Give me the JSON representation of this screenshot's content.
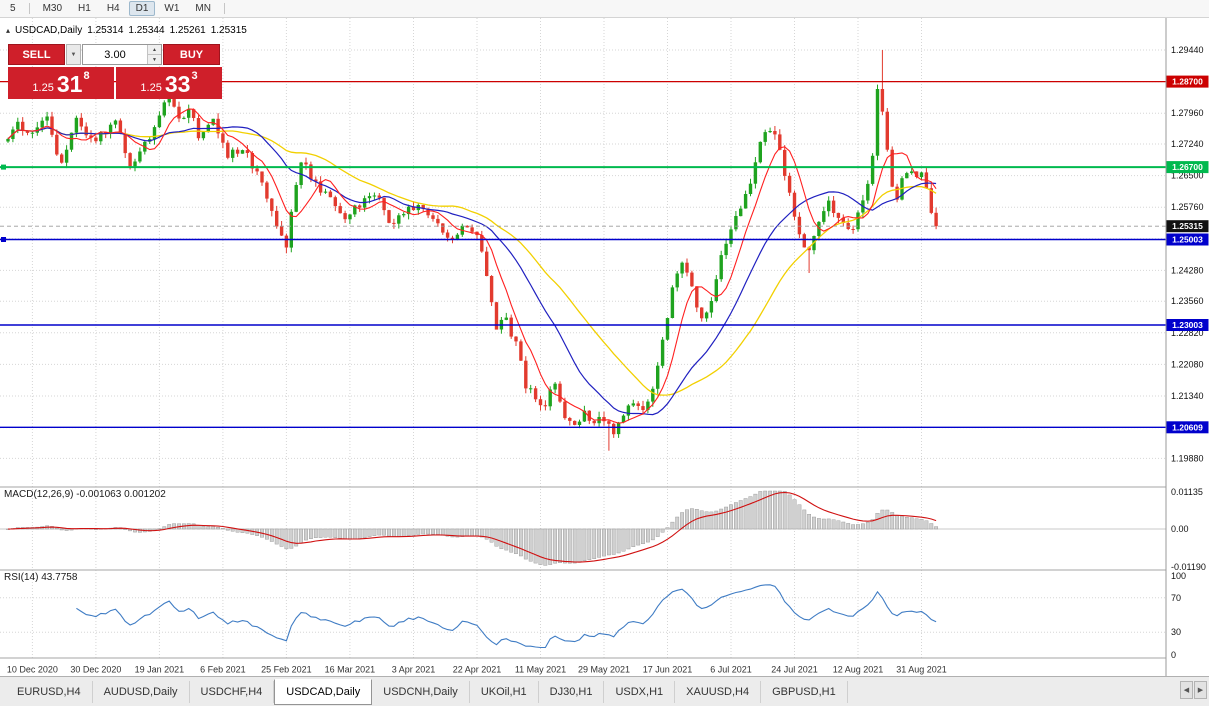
{
  "toolbar": {
    "timeframes": [
      {
        "label": "5",
        "active": false
      },
      {
        "label": "M30",
        "active": false
      },
      {
        "label": "H1",
        "active": false
      },
      {
        "label": "H4",
        "active": false
      },
      {
        "label": "D1",
        "active": true
      },
      {
        "label": "W1",
        "active": false
      },
      {
        "label": "MN",
        "active": false
      }
    ]
  },
  "chart": {
    "title": {
      "collapse_glyph": "▴",
      "symbol": "USDCAD,Daily",
      "open": "1.25314",
      "high": "1.25344",
      "low": "1.25261",
      "close": "1.25315"
    },
    "current_price": {
      "value": 1.25315,
      "label": "1.25315"
    },
    "y_ticks": [
      "1.29440",
      "1.28700",
      "1.27960",
      "1.27240",
      "1.26500",
      "1.25760",
      "1.25020",
      "1.24280",
      "1.23560",
      "1.22820",
      "1.22080",
      "1.21340",
      "1.20600",
      "1.19880"
    ],
    "levels": [
      {
        "price": 1.287,
        "label": "1.28700",
        "color": "#cc0000",
        "width": 1.2,
        "handle": false
      },
      {
        "price": 1.267,
        "label": "1.26700",
        "color": "#00b94e",
        "width": 2,
        "handle": true
      },
      {
        "price": 1.25003,
        "label": "1.25003",
        "color": "#0000cc",
        "width": 1.4,
        "handle": true
      },
      {
        "price": 1.23003,
        "label": "1.23003",
        "color": "#0000cc",
        "width": 1.4,
        "handle": false
      },
      {
        "price": 1.20609,
        "label": "1.20609",
        "color": "#0000cc",
        "width": 1.4,
        "handle": false
      }
    ],
    "x_labels": [
      "10 Dec 2020",
      "30 Dec 2020",
      "19 Jan 2021",
      "6 Feb 2021",
      "25 Feb 2021",
      "16 Mar 2021",
      "3 Apr 2021",
      "22 Apr 2021",
      "11 May 2021",
      "29 May 2021",
      "17 Jun 2021",
      "6 Jul 2021",
      "24 Jul 2021",
      "12 Aug 2021",
      "31 Aug 2021"
    ]
  },
  "trade": {
    "sell_label": "SELL",
    "buy_label": "BUY",
    "volume": "3.00",
    "dropdown_glyph": "▼",
    "spin_up_glyph": "▲",
    "spin_down_glyph": "▼",
    "sell_price": {
      "big": "1.25",
      "pips": "31",
      "frac": "8"
    },
    "buy_price": {
      "big": "1.25",
      "pips": "33",
      "frac": "3"
    }
  },
  "macd": {
    "label": "MACD(12,26,9) -0.001063 0.001202",
    "ticks": [
      {
        "value": 0.01135,
        "label": "0.01135"
      },
      {
        "value": 0,
        "label": "0.00"
      },
      {
        "value": -0.0119,
        "label": "-0.01190"
      }
    ]
  },
  "rsi": {
    "label": "RSI(14) 43.7758",
    "ticks": [
      {
        "value": 100,
        "label": "100"
      },
      {
        "value": 70,
        "label": "70"
      },
      {
        "value": 30,
        "label": "30"
      },
      {
        "value": 0,
        "label": "0"
      }
    ],
    "levels": [
      70,
      30
    ]
  },
  "tabs": {
    "items": [
      {
        "label": "EURUSD,H4",
        "active": false
      },
      {
        "label": "AUDUSD,Daily",
        "active": false
      },
      {
        "label": "USDCHF,H4",
        "active": false
      },
      {
        "label": "USDCAD,Daily",
        "active": true
      },
      {
        "label": "USDCNH,Daily",
        "active": false
      },
      {
        "label": "UKOil,H1",
        "active": false
      },
      {
        "label": "DJ30,H1",
        "active": false
      },
      {
        "label": "USDX,H1",
        "active": false
      },
      {
        "label": "XAUUSD,H4",
        "active": false
      },
      {
        "label": "GBPUSD,H1",
        "active": false
      }
    ],
    "scroll_left_glyph": "◀",
    "scroll_right_glyph": "▶"
  },
  "colors": {
    "candle_up": "#1fa31f",
    "candle_down": "#e23a2e",
    "ma_fast": "#ff2020",
    "ma_mid": "#2020c0",
    "ma_slow": "#f2d000",
    "macd_bar_fill": "#d0d0d0",
    "macd_bar_stroke": "#909090",
    "macd_signal": "#d01010",
    "rsi_line": "#3f7cc4",
    "grid": "#d6d6d6",
    "badge_current_bg": "#111111",
    "sell_red": "#cf1f2a"
  },
  "chart_data": {
    "type": "candlestick",
    "symbol": "USDCAD",
    "timeframe": "Daily",
    "n": 191,
    "bars_per_label": 13,
    "first_label_index": 5,
    "price_axis": {
      "top_price": 1.2944,
      "bottom_price": 1.1988
    },
    "macd_axis": {
      "max": 0.01135,
      "min": -0.0119
    },
    "rsi_axis": {
      "max": 100,
      "min": 0
    },
    "ma_periods": [
      7,
      20,
      34
    ],
    "macd_params": [
      12,
      26,
      9
    ],
    "rsi_period": 14,
    "close_anchors": [
      [
        0,
        1.2738
      ],
      [
        2,
        1.2768
      ],
      [
        5,
        1.2752
      ],
      [
        8,
        1.278
      ],
      [
        11,
        1.2672
      ],
      [
        14,
        1.2796
      ],
      [
        17,
        1.2734
      ],
      [
        20,
        1.2752
      ],
      [
        22,
        1.2784
      ],
      [
        25,
        1.2662
      ],
      [
        28,
        1.2726
      ],
      [
        31,
        1.2786
      ],
      [
        33,
        1.2838
      ],
      [
        35,
        1.2774
      ],
      [
        37,
        1.2814
      ],
      [
        39,
        1.2746
      ],
      [
        42,
        1.2776
      ],
      [
        45,
        1.2694
      ],
      [
        48,
        1.2716
      ],
      [
        51,
        1.2652
      ],
      [
        54,
        1.2565
      ],
      [
        57,
        1.2482
      ],
      [
        58,
        1.256
      ],
      [
        60,
        1.269
      ],
      [
        63,
        1.2628
      ],
      [
        66,
        1.2592
      ],
      [
        69,
        1.2548
      ],
      [
        72,
        1.2586
      ],
      [
        75,
        1.2614
      ],
      [
        78,
        1.2542
      ],
      [
        81,
        1.256
      ],
      [
        84,
        1.2588
      ],
      [
        87,
        1.2545
      ],
      [
        90,
        1.2498
      ],
      [
        93,
        1.2526
      ],
      [
        96,
        1.2508
      ],
      [
        98,
        1.242
      ],
      [
        100,
        1.23
      ],
      [
        102,
        1.2316
      ],
      [
        104,
        1.2252
      ],
      [
        106,
        1.216
      ],
      [
        108,
        1.213
      ],
      [
        110,
        1.211
      ],
      [
        112,
        1.2168
      ],
      [
        114,
        1.208
      ],
      [
        116,
        1.2062
      ],
      [
        118,
        1.21
      ],
      [
        120,
        1.2068
      ],
      [
        122,
        1.2084
      ],
      [
        124,
        1.204
      ],
      [
        126,
        1.209
      ],
      [
        128,
        1.2124
      ],
      [
        130,
        1.21
      ],
      [
        132,
        1.216
      ],
      [
        134,
        1.2258
      ],
      [
        136,
        1.2396
      ],
      [
        138,
        1.2455
      ],
      [
        140,
        1.239
      ],
      [
        142,
        1.2305
      ],
      [
        144,
        1.235
      ],
      [
        146,
        1.2462
      ],
      [
        148,
        1.2525
      ],
      [
        150,
        1.258
      ],
      [
        152,
        1.2625
      ],
      [
        154,
        1.2718
      ],
      [
        156,
        1.2765
      ],
      [
        158,
        1.2712
      ],
      [
        160,
        1.2605
      ],
      [
        162,
        1.2515
      ],
      [
        164,
        1.247
      ],
      [
        166,
        1.254
      ],
      [
        168,
        1.2582
      ],
      [
        170,
        1.2552
      ],
      [
        172,
        1.2515
      ],
      [
        174,
        1.2555
      ],
      [
        176,
        1.263
      ],
      [
        177,
        1.2705
      ],
      [
        178,
        1.2845
      ],
      [
        179,
        1.2795
      ],
      [
        180,
        1.27
      ],
      [
        181,
        1.2618
      ],
      [
        182,
        1.26
      ],
      [
        183,
        1.2642
      ],
      [
        185,
        1.266
      ],
      [
        187,
        1.2648
      ],
      [
        188,
        1.261
      ],
      [
        189,
        1.256
      ],
      [
        190,
        1.25315
      ]
    ],
    "spikes": [
      {
        "i": 57,
        "low": 1.2468
      },
      {
        "i": 123,
        "low": 1.2006
      },
      {
        "i": 164,
        "low": 1.2422
      },
      {
        "i": 179,
        "high": 1.2944
      }
    ]
  }
}
